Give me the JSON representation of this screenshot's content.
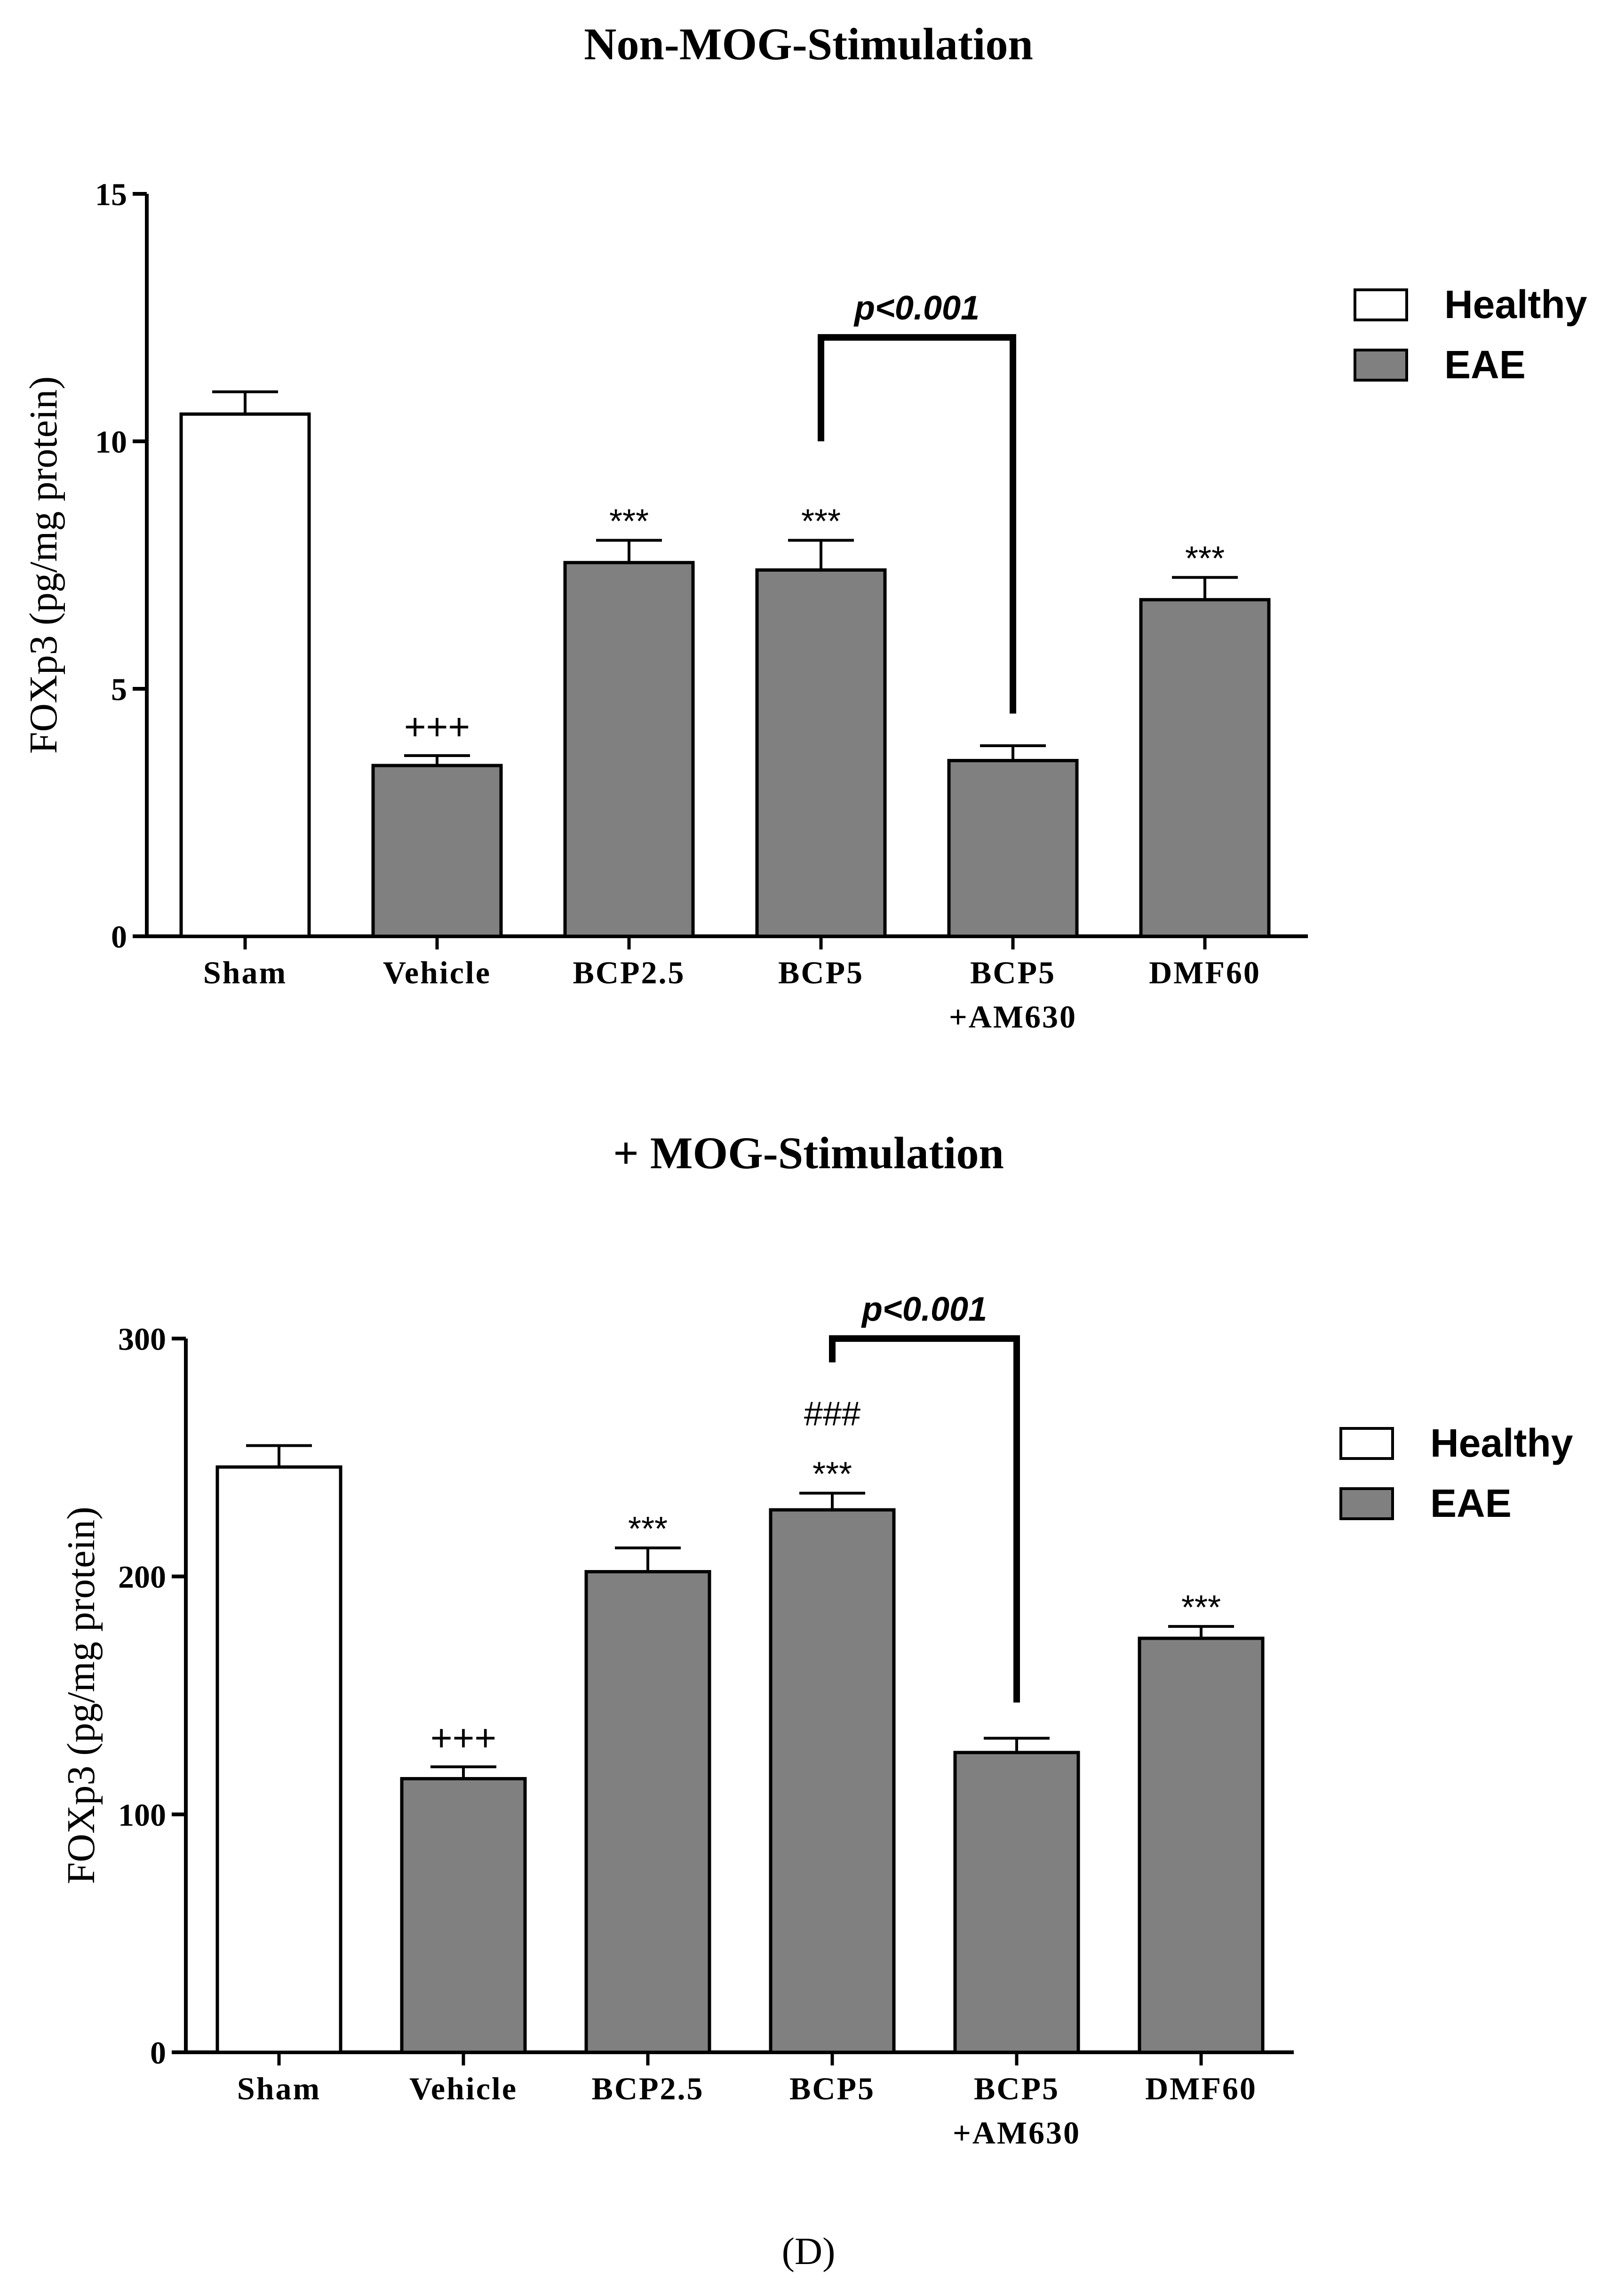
{
  "figure_label": "(D)",
  "chart_data": [
    {
      "type": "bar",
      "title": "Non-MOG-Stimulation",
      "ylabel": "FOXp3 (pg/mg protein)",
      "xlabel": "",
      "ylim": [
        0,
        15
      ],
      "yticks": [
        "0",
        "5",
        "10",
        "15"
      ],
      "categories": [
        [
          "Sham"
        ],
        [
          "Vehicle"
        ],
        [
          "BCP2.5"
        ],
        [
          "BCP5"
        ],
        [
          "BCP5",
          "+AM630"
        ],
        [
          "DMF60"
        ]
      ],
      "values": [
        10.55,
        3.45,
        7.55,
        7.4,
        3.55,
        6.8
      ],
      "errors": [
        0.45,
        0.2,
        0.45,
        0.6,
        0.3,
        0.45
      ],
      "groups": [
        "Healthy",
        "EAE",
        "EAE",
        "EAE",
        "EAE",
        "EAE"
      ],
      "annotations": [
        {
          "category_index": 1,
          "lines": [
            "+++"
          ]
        },
        {
          "category_index": 2,
          "lines": [
            "***"
          ]
        },
        {
          "category_index": 3,
          "lines": [
            "***"
          ]
        },
        {
          "category_index": 5,
          "lines": [
            "***"
          ]
        }
      ],
      "comparison": {
        "from": 3,
        "to": 4,
        "label": "p<0.001",
        "from_end": 10.0,
        "to_end": 4.5,
        "bar_level": 12.1
      },
      "legend": {
        "position": "right",
        "items": [
          {
            "label": "Healthy",
            "color": "#ffffff"
          },
          {
            "label": "EAE",
            "color": "#808080"
          }
        ]
      },
      "grid": false
    },
    {
      "type": "bar",
      "title": "+ MOG-Stimulation",
      "ylabel": "FOXp3 (pg/mg protein)",
      "xlabel": "",
      "ylim": [
        0,
        300
      ],
      "yticks": [
        "0",
        "100",
        "200",
        "300"
      ],
      "categories": [
        [
          "Sham"
        ],
        [
          "Vehicle"
        ],
        [
          "BCP2.5"
        ],
        [
          "BCP5"
        ],
        [
          "BCP5",
          "+AM630"
        ],
        [
          "DMF60"
        ]
      ],
      "values": [
        246,
        115,
        202,
        228,
        126,
        174
      ],
      "errors": [
        9,
        5,
        10,
        7,
        6,
        5
      ],
      "groups": [
        "Healthy",
        "EAE",
        "EAE",
        "EAE",
        "EAE",
        "EAE"
      ],
      "annotations": [
        {
          "category_index": 1,
          "lines": [
            "+++"
          ]
        },
        {
          "category_index": 2,
          "lines": [
            "***"
          ]
        },
        {
          "category_index": 3,
          "lines": [
            "###",
            "***"
          ]
        },
        {
          "category_index": 5,
          "lines": [
            "***"
          ]
        }
      ],
      "comparison": {
        "from": 3,
        "to": 4,
        "label": "p<0.001",
        "from_end": 290,
        "to_end": 147,
        "bar_level": 300
      },
      "legend": {
        "position": "right",
        "items": [
          {
            "label": "Healthy",
            "color": "#ffffff"
          },
          {
            "label": "EAE",
            "color": "#808080"
          }
        ]
      },
      "grid": false
    }
  ]
}
